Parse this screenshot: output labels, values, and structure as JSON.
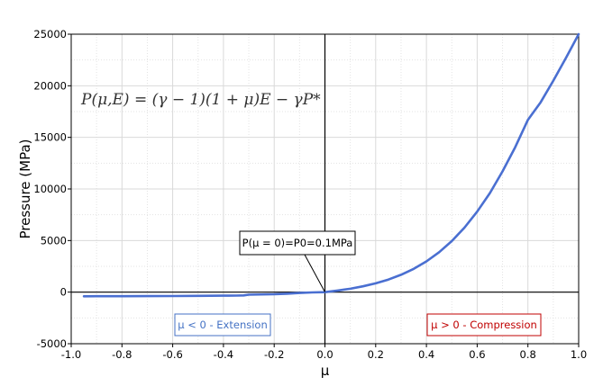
{
  "chart_data": {
    "type": "line",
    "xlabel": "μ",
    "ylabel": "Pressure (MPa)",
    "xlim": [
      -1.0,
      1.0
    ],
    "ylim": [
      -5000,
      25000
    ],
    "x_ticks": [
      -1.0,
      -0.8,
      -0.6,
      -0.4,
      -0.2,
      0.0,
      0.2,
      0.4,
      0.6,
      0.8,
      1.0
    ],
    "x_tick_labels": [
      "-1.0",
      "-0.8",
      "-0.6",
      "-0.4",
      "-0.2",
      "0.0",
      "0.2",
      "0.4",
      "0.6",
      "0.8",
      "1.0"
    ],
    "y_ticks": [
      -5000,
      0,
      5000,
      10000,
      15000,
      20000,
      25000
    ],
    "y_tick_labels": [
      "-5000",
      "0",
      "5000",
      "10000",
      "15000",
      "20000",
      "25000"
    ],
    "grid": true,
    "series": [
      {
        "color": "#4a6fd1",
        "x": [
          -0.95,
          -0.9,
          -0.8,
          -0.7,
          -0.6,
          -0.5,
          -0.4,
          -0.35,
          -0.32,
          -0.3,
          -0.2,
          -0.15,
          -0.1,
          -0.05,
          0.0,
          0.05,
          0.1,
          0.15,
          0.2,
          0.25,
          0.3,
          0.35,
          0.4,
          0.45,
          0.5,
          0.55,
          0.6,
          0.65,
          0.7,
          0.75,
          0.8,
          0.85,
          0.9,
          0.95,
          1.0
        ],
        "y": [
          -400,
          -398,
          -393,
          -385,
          -375,
          -362,
          -345,
          -330,
          -320,
          -250,
          -200,
          -150,
          -80,
          -30,
          0,
          150,
          330,
          560,
          850,
          1220,
          1680,
          2260,
          2980,
          3870,
          4950,
          6250,
          7800,
          9600,
          11700,
          14050,
          16700,
          18400,
          20500,
          22700,
          25000
        ]
      }
    ],
    "annotations": {
      "formula": "P(μ,E) = (γ − 1)(1 + μ)E − γP*",
      "point_label": "P(μ = 0)=P0=0.1MPa",
      "point": [
        0.0,
        0
      ],
      "extension_label": "μ < 0 - Extension",
      "compression_label": "μ > 0 - Compression",
      "extension_color": "#4472c4",
      "compression_color": "#c00000"
    }
  }
}
